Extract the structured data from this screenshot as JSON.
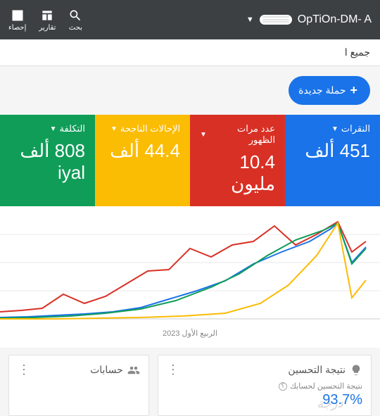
{
  "header": {
    "brand": "OpTiOn-DM- A",
    "icons": {
      "reports": "تقارير",
      "insights": "إحصاء",
      "search": "بحث"
    }
  },
  "subheader": {
    "text": "جميع ا"
  },
  "newCampaign": {
    "label": "حملة جديدة",
    "plus": "+"
  },
  "metrics": [
    {
      "id": "clicks",
      "label": "النقرات",
      "value": "451 ألف",
      "bg": "#1a73e8"
    },
    {
      "id": "impressions",
      "label": "عدد مرات الظهور",
      "value": "10.4 مليون",
      "bg": "#d93025"
    },
    {
      "id": "conversions",
      "label": "الإحالات الناجحة",
      "value": "44.4 ألف",
      "bg": "#fbbc04"
    },
    {
      "id": "cost",
      "label": "التكلفة",
      "value": "808 ألف iyal",
      "bg": "#0f9d58"
    }
  ],
  "chart": {
    "xlabel": "الربيع الأول 2023",
    "series": [
      {
        "color": "#d93025",
        "width": 2,
        "points": [
          [
            0,
            140
          ],
          [
            30,
            138
          ],
          [
            60,
            135
          ],
          [
            90,
            115
          ],
          [
            120,
            128
          ],
          [
            150,
            118
          ],
          [
            180,
            100
          ],
          [
            210,
            82
          ],
          [
            240,
            80
          ],
          [
            270,
            50
          ],
          [
            300,
            62
          ],
          [
            330,
            45
          ],
          [
            360,
            40
          ],
          [
            390,
            18
          ],
          [
            420,
            45
          ],
          [
            450,
            30
          ],
          [
            480,
            12
          ],
          [
            500,
            55
          ],
          [
            520,
            40
          ]
        ]
      },
      {
        "color": "#1a73e8",
        "width": 2,
        "points": [
          [
            0,
            148
          ],
          [
            40,
            147
          ],
          [
            80,
            145
          ],
          [
            120,
            143
          ],
          [
            160,
            140
          ],
          [
            200,
            134
          ],
          [
            240,
            122
          ],
          [
            280,
            110
          ],
          [
            320,
            96
          ],
          [
            360,
            72
          ],
          [
            400,
            55
          ],
          [
            440,
            40
          ],
          [
            470,
            22
          ],
          [
            480,
            14
          ],
          [
            500,
            70
          ],
          [
            520,
            48
          ]
        ]
      },
      {
        "color": "#0f9d58",
        "width": 2,
        "points": [
          [
            0,
            149
          ],
          [
            50,
            148
          ],
          [
            100,
            146
          ],
          [
            150,
            142
          ],
          [
            200,
            136
          ],
          [
            250,
            124
          ],
          [
            300,
            105
          ],
          [
            340,
            86
          ],
          [
            380,
            60
          ],
          [
            420,
            38
          ],
          [
            460,
            24
          ],
          [
            480,
            14
          ],
          [
            500,
            72
          ],
          [
            520,
            50
          ]
        ]
      },
      {
        "color": "#fbbc04",
        "width": 2,
        "points": [
          [
            0,
            150
          ],
          [
            80,
            150
          ],
          [
            140,
            149
          ],
          [
            200,
            148
          ],
          [
            260,
            146
          ],
          [
            320,
            142
          ],
          [
            370,
            128
          ],
          [
            410,
            102
          ],
          [
            450,
            60
          ],
          [
            480,
            14
          ],
          [
            500,
            120
          ],
          [
            520,
            95
          ]
        ]
      }
    ],
    "gridline_color": "#e8e8e8"
  },
  "cards": {
    "optimization": {
      "title": "نتيجة التحسين",
      "sub": "نتيجة التحسين لحسابك",
      "score": "93.7%"
    },
    "accounts": {
      "title": "حسابات"
    }
  }
}
